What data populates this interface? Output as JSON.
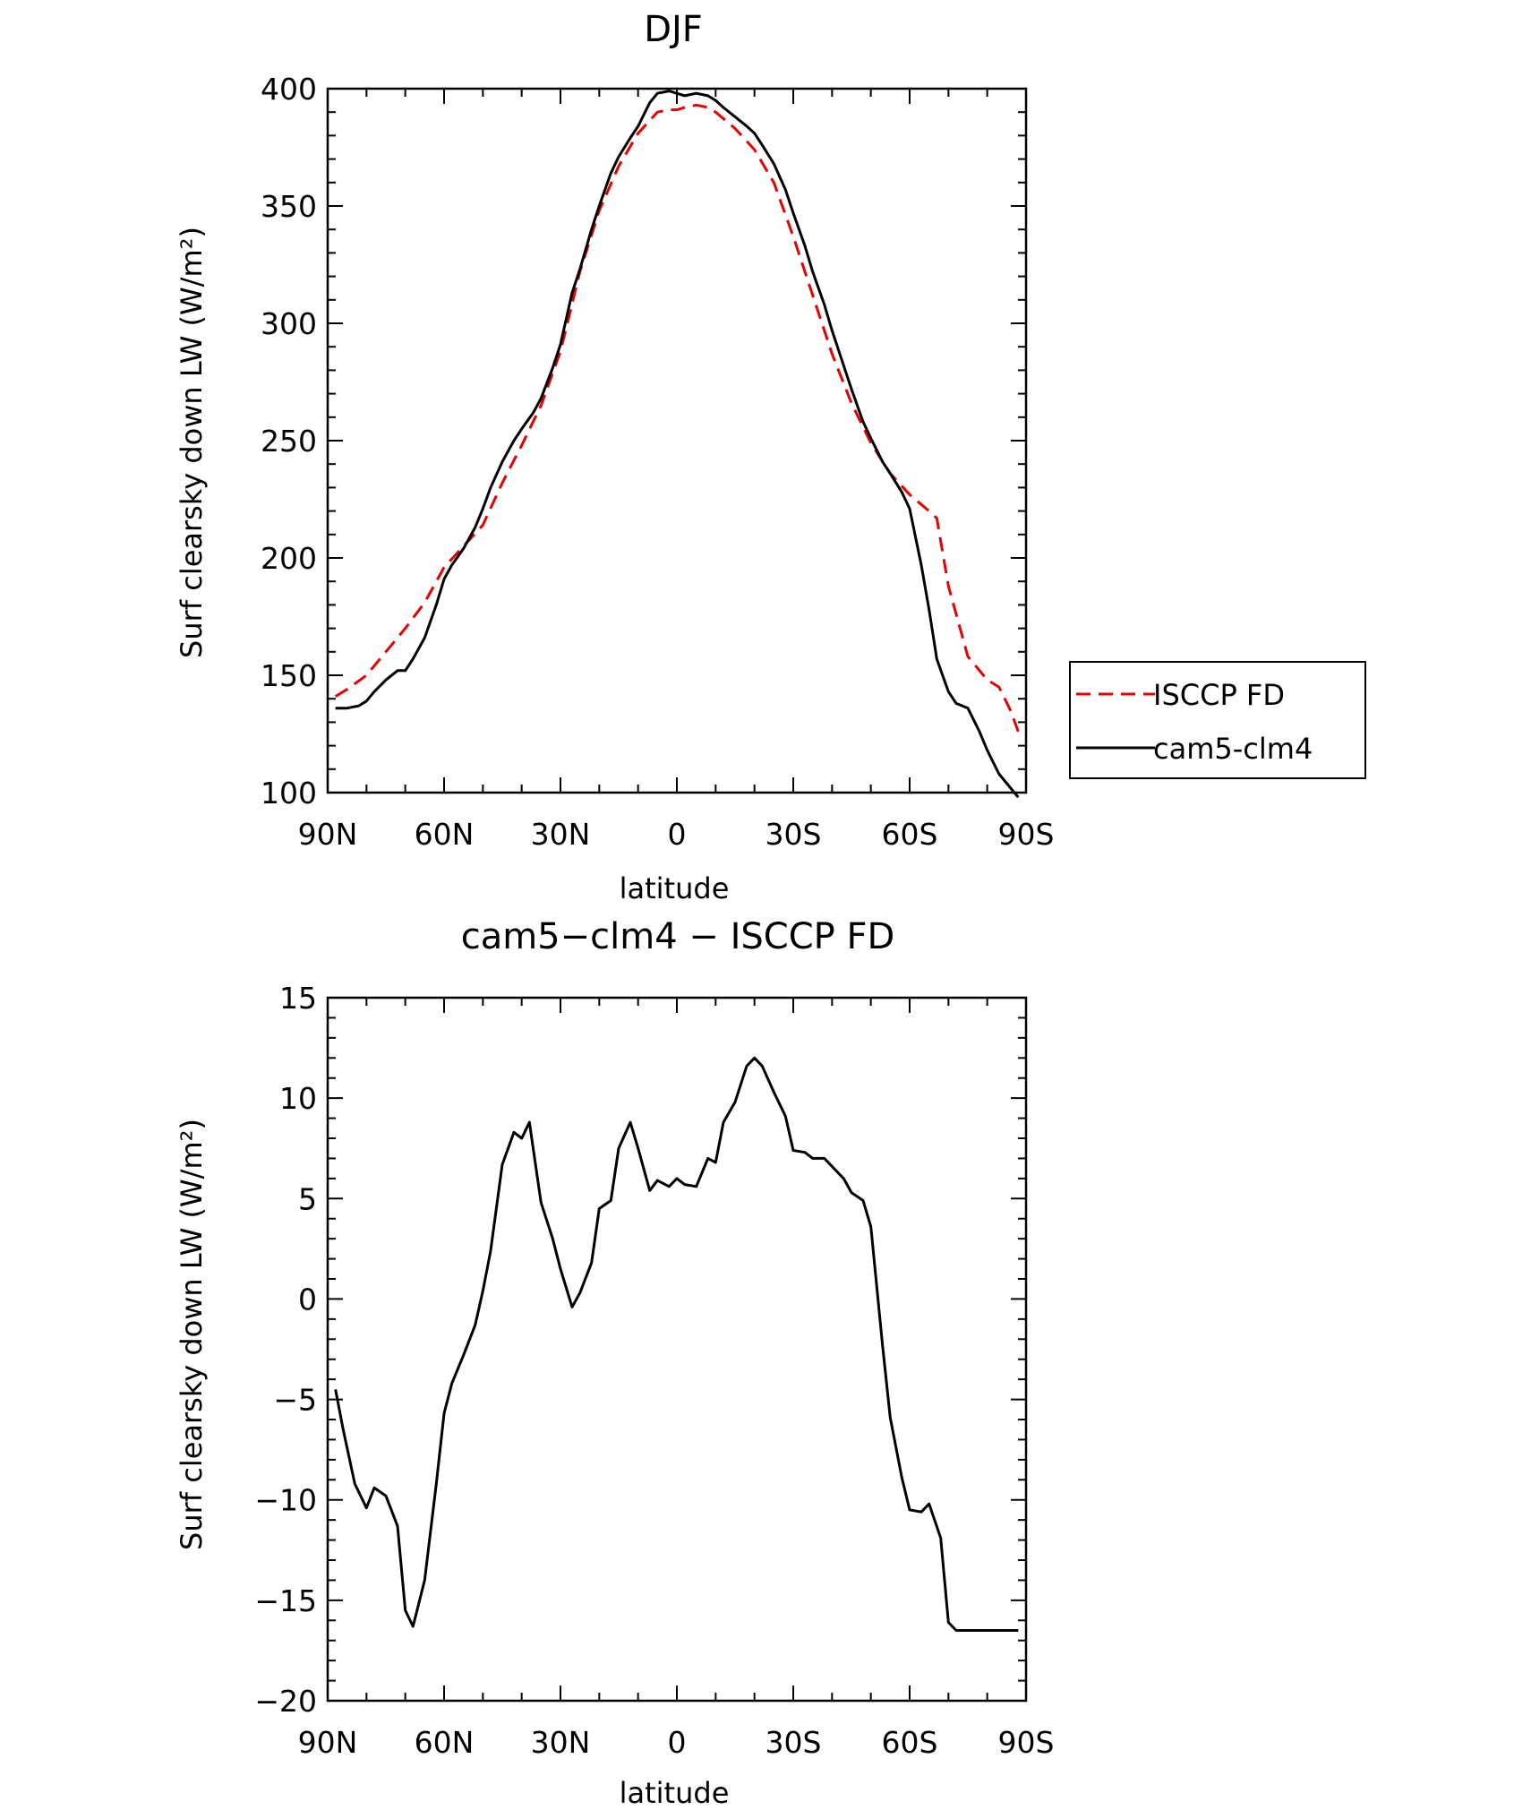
{
  "chart_data": [
    {
      "type": "line",
      "title": "DJF",
      "xlabel": "latitude",
      "ylabel": "Surf clearsky down LW (W/m²)",
      "xlim": [
        90,
        -90
      ],
      "ylim": [
        100,
        400
      ],
      "xticks": [
        90,
        60,
        30,
        0,
        -30,
        -60,
        -90
      ],
      "xtick_labels": [
        "90N",
        "60N",
        "30N",
        "0",
        "30S",
        "60S",
        "90S"
      ],
      "yticks": [
        100,
        150,
        200,
        250,
        300,
        350,
        400
      ],
      "ytick_labels": [
        "100",
        "150",
        "200",
        "250",
        "300",
        "350",
        "400"
      ],
      "grid": false,
      "legend": "outside-right",
      "series": [
        {
          "name": "ISCCP FD",
          "color": "#e60000",
          "dash": "dashed",
          "x": [
            88,
            85,
            80,
            75,
            70,
            65,
            60,
            55,
            50,
            45,
            40,
            35,
            30,
            25,
            20,
            15,
            10,
            5,
            2,
            0,
            -2,
            -5,
            -8,
            -10,
            -15,
            -20,
            -25,
            -30,
            -35,
            -40,
            -45,
            -50,
            -55,
            -60,
            -65,
            -67,
            -70,
            -75,
            -80,
            -83,
            -86,
            -88
          ],
          "y": [
            141,
            144,
            150,
            160,
            170,
            181,
            196,
            205,
            214,
            232,
            248,
            265,
            288,
            322,
            348,
            367,
            381,
            390,
            391,
            391,
            392,
            393,
            392,
            390,
            383,
            374,
            360,
            337,
            312,
            287,
            266,
            249,
            236,
            227,
            220,
            217,
            188,
            158,
            148,
            145,
            135,
            126
          ]
        },
        {
          "name": "cam5-clm4",
          "color": "#000000",
          "dash": "solid",
          "x": [
            88,
            85,
            82,
            80,
            78,
            75,
            72,
            70,
            68,
            65,
            62,
            60,
            58,
            55,
            52,
            50,
            48,
            45,
            42,
            40,
            37,
            35,
            32,
            30,
            27,
            25,
            22,
            20,
            17,
            15,
            12,
            10,
            7,
            5,
            2,
            0,
            -2,
            -5,
            -8,
            -10,
            -12,
            -15,
            -18,
            -20,
            -22,
            -25,
            -28,
            -30,
            -33,
            -35,
            -38,
            -40,
            -43,
            -45,
            -48,
            -50,
            -53,
            -55,
            -58,
            -60,
            -63,
            -65,
            -67,
            -70,
            -72,
            -75,
            -78,
            -80,
            -83,
            -85,
            -88
          ],
          "y": [
            136,
            136,
            137,
            139,
            143,
            148,
            152,
            152,
            157,
            166,
            180,
            191,
            197,
            204,
            213,
            221,
            230,
            241,
            250,
            255,
            262,
            268,
            281,
            291,
            313,
            323,
            340,
            350,
            364,
            371,
            379,
            384,
            394,
            398,
            399,
            398,
            397,
            398,
            397,
            395,
            392,
            388,
            384,
            381,
            376,
            368,
            357,
            347,
            333,
            322,
            308,
            297,
            282,
            272,
            258,
            251,
            241,
            236,
            228,
            221,
            197,
            178,
            157,
            143,
            138,
            136,
            126,
            118,
            108,
            104,
            98
          ]
        }
      ]
    },
    {
      "type": "line",
      "title": "cam5−clm4 − ISCCP FD",
      "xlabel": "latitude",
      "ylabel": "Surf clearsky down LW (W/m²)",
      "xlim": [
        90,
        -90
      ],
      "ylim": [
        -20,
        15
      ],
      "xticks": [
        90,
        60,
        30,
        0,
        -30,
        -60,
        -90
      ],
      "xtick_labels": [
        "90N",
        "60N",
        "30N",
        "0",
        "30S",
        "60S",
        "90S"
      ],
      "yticks": [
        -20,
        -15,
        -10,
        -5,
        0,
        5,
        10,
        15
      ],
      "ytick_labels": [
        "−20",
        "−15",
        "−10",
        "−5",
        "0",
        "5",
        "10",
        "15"
      ],
      "grid": false,
      "series": [
        {
          "color": "#000000",
          "dash": "solid",
          "x": [
            88,
            86,
            83,
            80,
            78,
            75,
            72,
            70,
            68,
            65,
            62,
            60,
            58,
            55,
            52,
            50,
            48,
            45,
            42,
            40,
            38,
            35,
            32,
            30,
            27,
            25,
            22,
            20,
            17,
            15,
            12,
            10,
            7,
            5,
            2,
            0,
            -2,
            -5,
            -8,
            -10,
            -12,
            -15,
            -18,
            -20,
            -22,
            -25,
            -28,
            -30,
            -33,
            -35,
            -38,
            -40,
            -43,
            -45,
            -48,
            -50,
            -53,
            -55,
            -58,
            -60,
            -63,
            -65,
            -68,
            -70,
            -72,
            -75,
            -78,
            -80,
            -83,
            -85,
            -88
          ],
          "y": [
            -4.5,
            -6.5,
            -9.2,
            -10.4,
            -9.4,
            -9.8,
            -11.3,
            -15.5,
            -16.3,
            -14.0,
            -9.2,
            -5.7,
            -4.2,
            -2.8,
            -1.3,
            0.4,
            2.4,
            6.7,
            8.3,
            8.0,
            8.8,
            4.8,
            3.0,
            1.5,
            -0.4,
            0.3,
            1.8,
            4.5,
            4.9,
            7.5,
            8.8,
            7.5,
            5.4,
            5.9,
            5.6,
            6.0,
            5.7,
            5.6,
            7.0,
            6.8,
            8.8,
            9.8,
            11.6,
            12.0,
            11.6,
            10.3,
            9.1,
            7.4,
            7.3,
            7.0,
            7.0,
            6.6,
            6.0,
            5.3,
            4.9,
            3.6,
            -2.3,
            -5.9,
            -8.9,
            -10.5,
            -10.6,
            -10.2,
            -11.9,
            -16.1,
            -16.5,
            -16.5,
            -16.5,
            -16.5,
            -16.5,
            -16.5,
            -16.5
          ]
        }
      ]
    }
  ]
}
